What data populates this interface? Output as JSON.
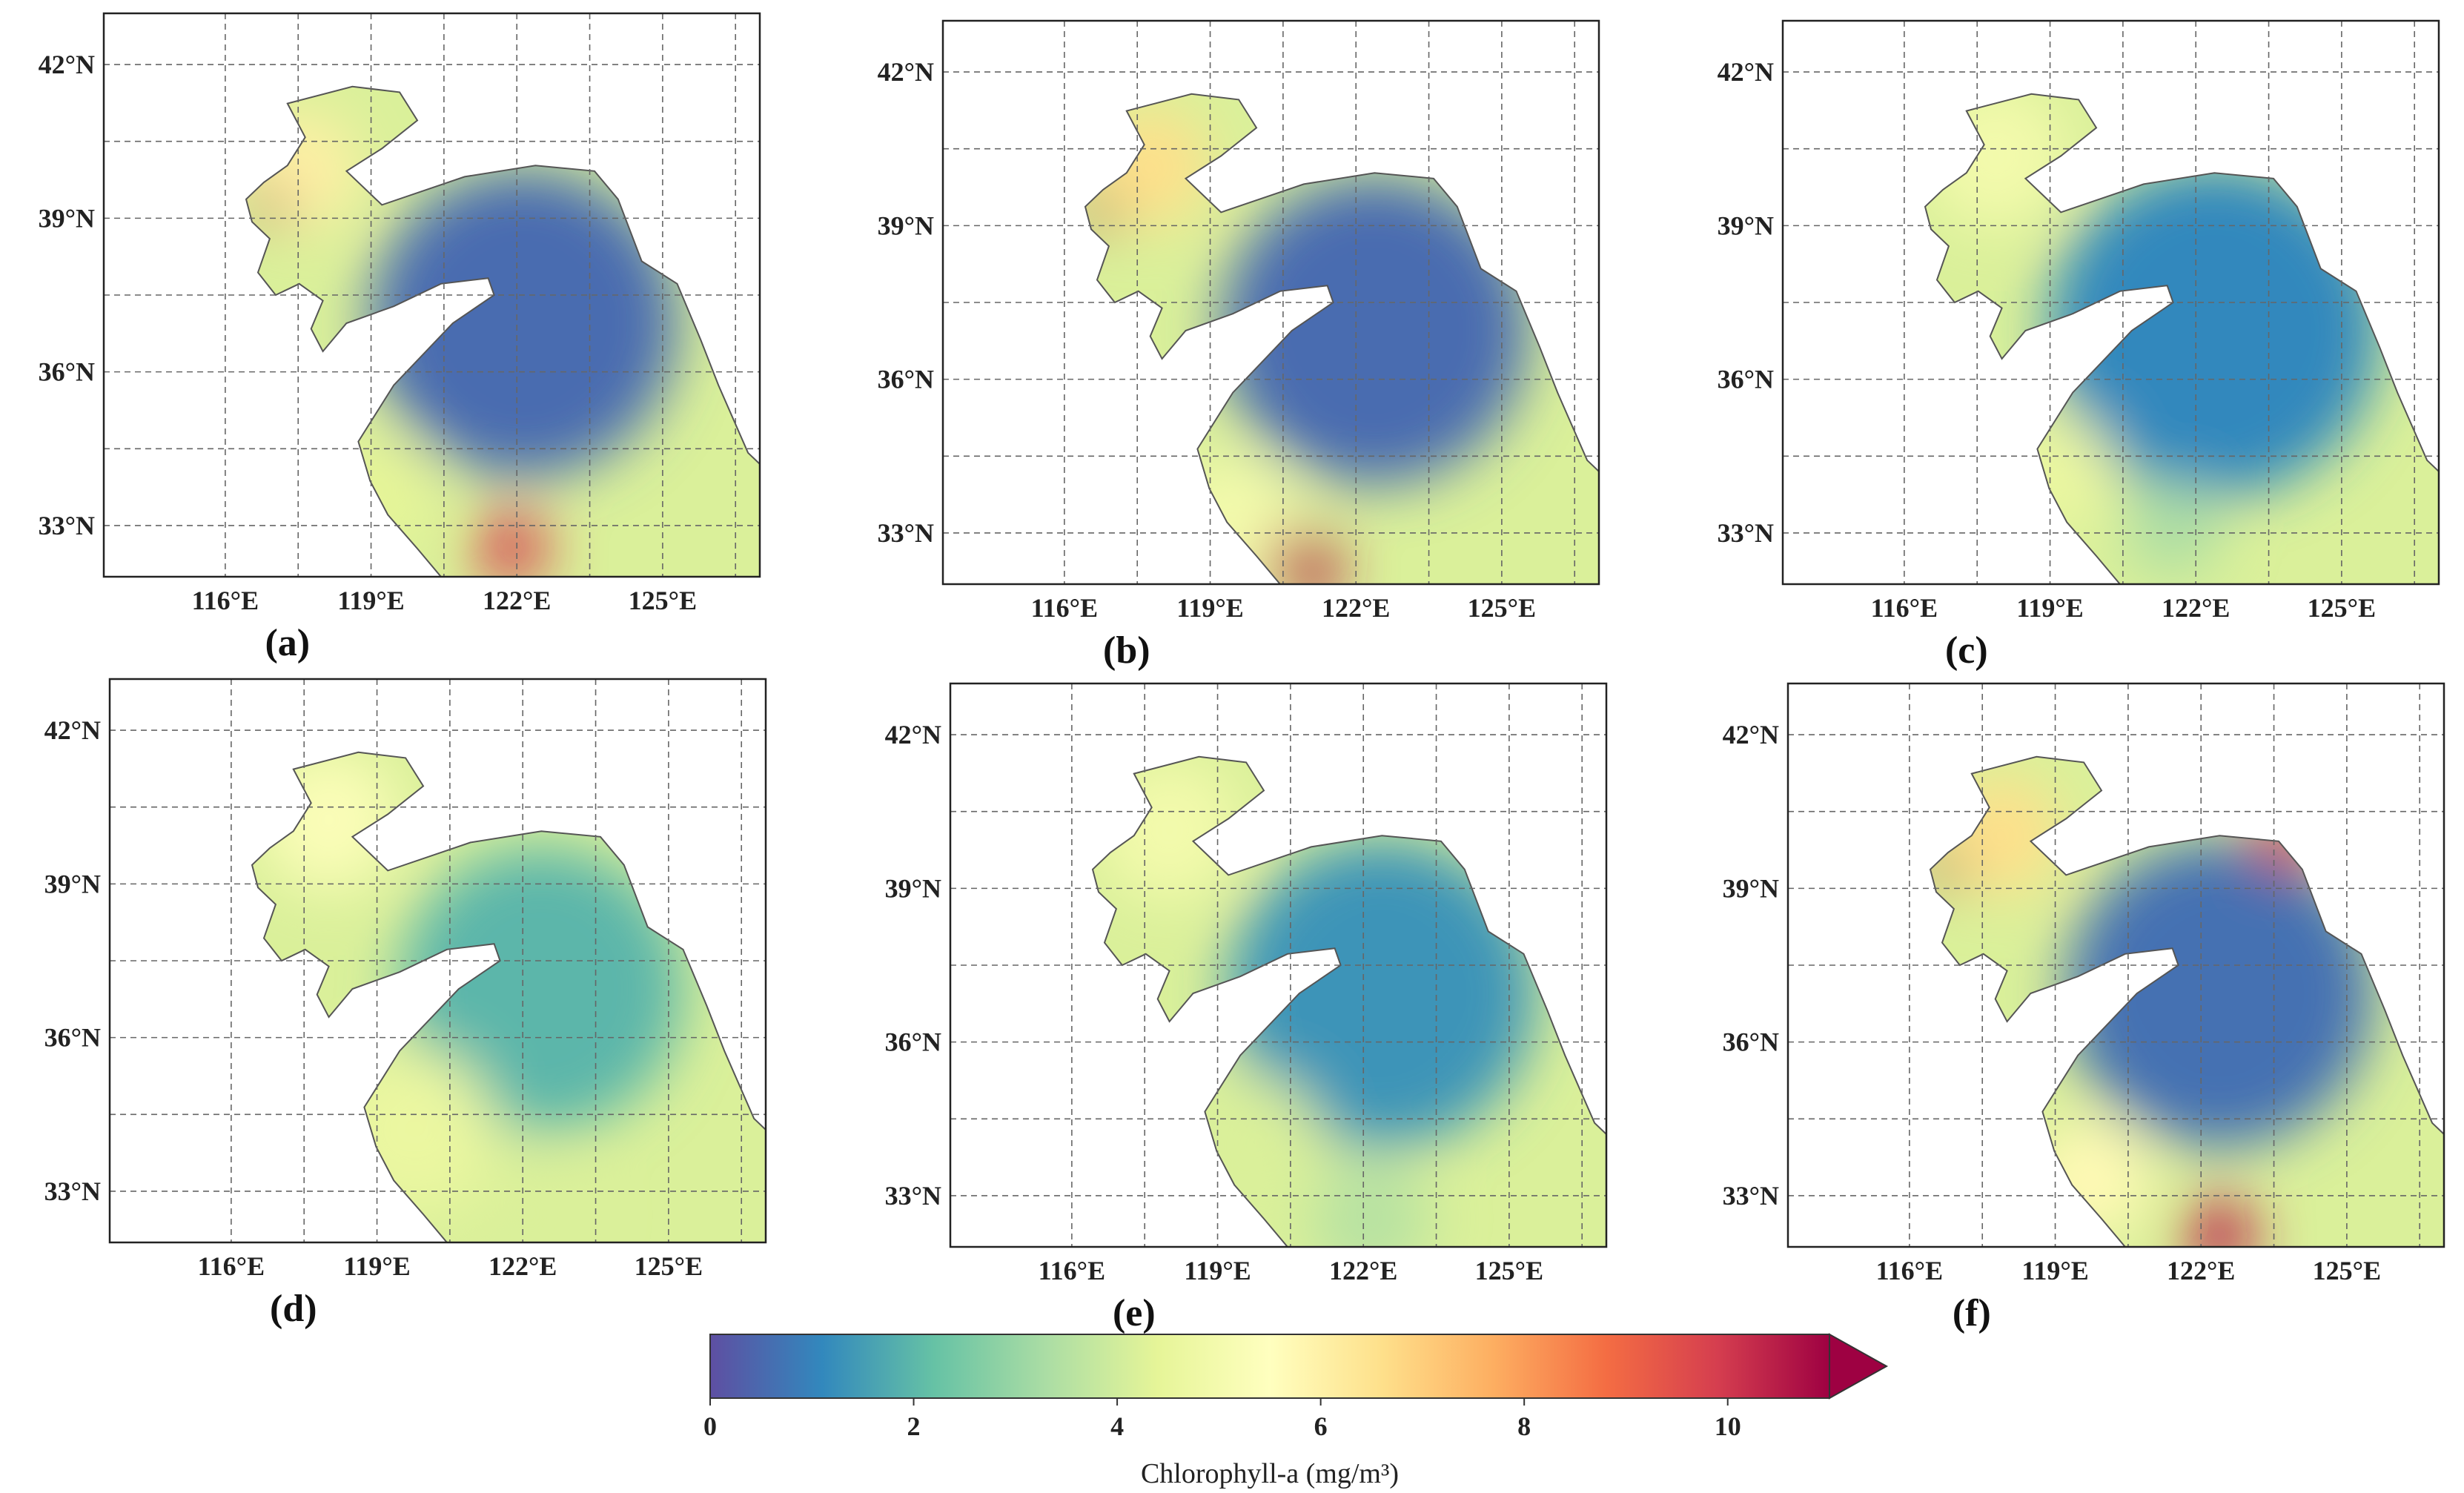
{
  "figure": {
    "panels": [
      {
        "id": "a",
        "label": "(a)",
        "pattern": 0
      },
      {
        "id": "b",
        "label": "(b)",
        "pattern": 1
      },
      {
        "id": "c",
        "label": "(c)",
        "pattern": 2
      },
      {
        "id": "d",
        "label": "(d)",
        "pattern": 3
      },
      {
        "id": "e",
        "label": "(e)",
        "pattern": 4
      },
      {
        "id": "f",
        "label": "(f)",
        "pattern": 5
      }
    ],
    "lon_ticks": [
      "116°E",
      "119°E",
      "122°E",
      "125°E"
    ],
    "lat_ticks": [
      "42°N",
      "39°N",
      "36°N",
      "33°N"
    ],
    "lon_values": [
      116,
      119,
      122,
      125
    ],
    "lat_values": [
      42,
      39,
      36,
      33
    ],
    "lon_range": [
      113.5,
      127
    ],
    "lat_range": [
      32,
      43
    ]
  },
  "colorbar": {
    "title": "Chlorophyll-a (mg/m³)",
    "ticks": [
      "0",
      "2",
      "4",
      "6",
      "8",
      "10"
    ],
    "tick_values": [
      0,
      2,
      4,
      6,
      8,
      10
    ],
    "range": [
      0,
      11
    ],
    "extend": "max",
    "colormap": "Spectral_r",
    "colors": [
      "#5e4fa2",
      "#3288bd",
      "#66c2a5",
      "#abdda4",
      "#e6f598",
      "#ffffbf",
      "#fee08b",
      "#fdae61",
      "#f46d43",
      "#d53e4f",
      "#9e0142"
    ]
  }
}
